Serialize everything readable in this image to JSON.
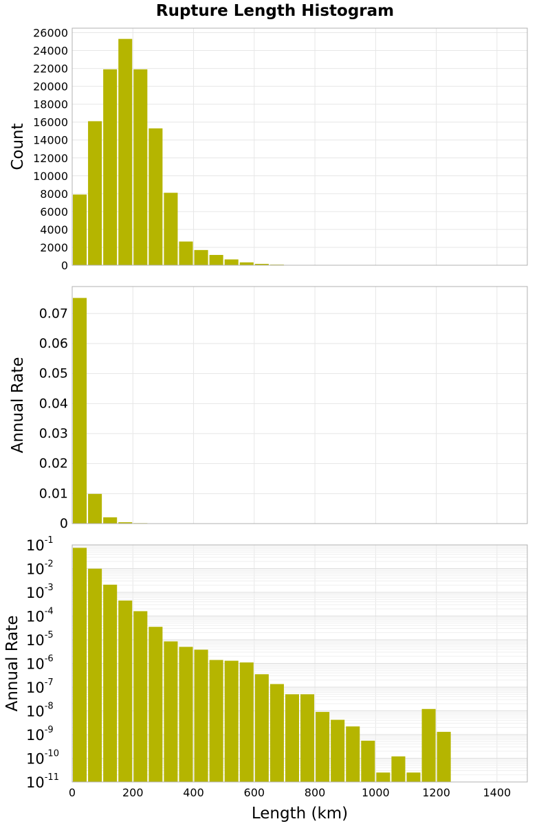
{
  "chart_data": {
    "title": "Rupture Length Histogram",
    "xlabel": "Length (km)",
    "x_ticks": [
      "0",
      "200",
      "400",
      "600",
      "800",
      "1000",
      "1200",
      "1400"
    ],
    "xlim": [
      0,
      1500
    ],
    "bin_width": 50,
    "bar_color": "#b5b500",
    "grid": true,
    "panels": [
      {
        "type": "bar",
        "ylabel": "Count",
        "ylim": [
          0,
          26500
        ],
        "y_scale": "linear",
        "y_ticks": [
          "0",
          "2000",
          "4000",
          "6000",
          "8000",
          "10000",
          "12000",
          "14000",
          "16000",
          "18000",
          "20000",
          "22000",
          "24000",
          "26000"
        ],
        "x": [
          25,
          75,
          125,
          175,
          225,
          275,
          325,
          375,
          425,
          475,
          525,
          575,
          625,
          675,
          725,
          775,
          825,
          875,
          925,
          975,
          1025,
          1075,
          1125,
          1175,
          1225
        ],
        "values": [
          7900,
          16100,
          21900,
          25300,
          21900,
          15300,
          8100,
          2650,
          1700,
          1150,
          650,
          320,
          150,
          70,
          35,
          18,
          10,
          5,
          3,
          2,
          0,
          0,
          0,
          0,
          0
        ]
      },
      {
        "type": "bar",
        "ylabel": "Annual Rate",
        "ylim": [
          0,
          0.079
        ],
        "y_scale": "linear",
        "y_ticks": [
          "0",
          "0.01",
          "0.02",
          "0.03",
          "0.04",
          "0.05",
          "0.06",
          "0.07"
        ],
        "x": [
          25,
          75,
          125,
          175,
          225,
          275,
          325,
          375,
          425,
          475,
          525,
          575,
          625,
          675,
          725,
          775,
          825,
          875,
          925,
          975,
          1025,
          1075,
          1125,
          1175,
          1225
        ],
        "values": [
          0.0752,
          0.0099,
          0.0021,
          0.00045,
          0.00016,
          3.5e-05,
          8.5e-06,
          5e-06,
          3.8e-06,
          1.4e-06,
          1.3e-06,
          1.1e-06,
          3.5e-07,
          1.35e-07,
          5e-08,
          5e-08,
          9e-09,
          4.2e-09,
          2.2e-09,
          5.5e-10,
          2.5e-11,
          1.2e-10,
          2.5e-11,
          1.2e-08,
          1.3e-09
        ]
      },
      {
        "type": "bar",
        "ylabel": "Annual Rate",
        "ylim": [
          1e-11,
          0.1
        ],
        "y_scale": "log",
        "y_ticks": [
          {
            "base": "10",
            "exp": "-11"
          },
          {
            "base": "10",
            "exp": "-10"
          },
          {
            "base": "10",
            "exp": "-9"
          },
          {
            "base": "10",
            "exp": "-8"
          },
          {
            "base": "10",
            "exp": "-7"
          },
          {
            "base": "10",
            "exp": "-6"
          },
          {
            "base": "10",
            "exp": "-5"
          },
          {
            "base": "10",
            "exp": "-4"
          },
          {
            "base": "10",
            "exp": "-3"
          },
          {
            "base": "10",
            "exp": "-2"
          },
          {
            "base": "10",
            "exp": "-1"
          }
        ],
        "x": [
          25,
          75,
          125,
          175,
          225,
          275,
          325,
          375,
          425,
          475,
          525,
          575,
          625,
          675,
          725,
          775,
          825,
          875,
          925,
          975,
          1025,
          1075,
          1125,
          1175,
          1225
        ],
        "values": [
          0.0752,
          0.0099,
          0.0021,
          0.00045,
          0.00016,
          3.5e-05,
          8.5e-06,
          5e-06,
          3.8e-06,
          1.4e-06,
          1.3e-06,
          1.1e-06,
          3.5e-07,
          1.35e-07,
          5e-08,
          5e-08,
          9e-09,
          4.2e-09,
          2.2e-09,
          5.5e-10,
          2.5e-11,
          1.2e-10,
          2.5e-11,
          1.2e-08,
          1.3e-09
        ]
      }
    ]
  }
}
